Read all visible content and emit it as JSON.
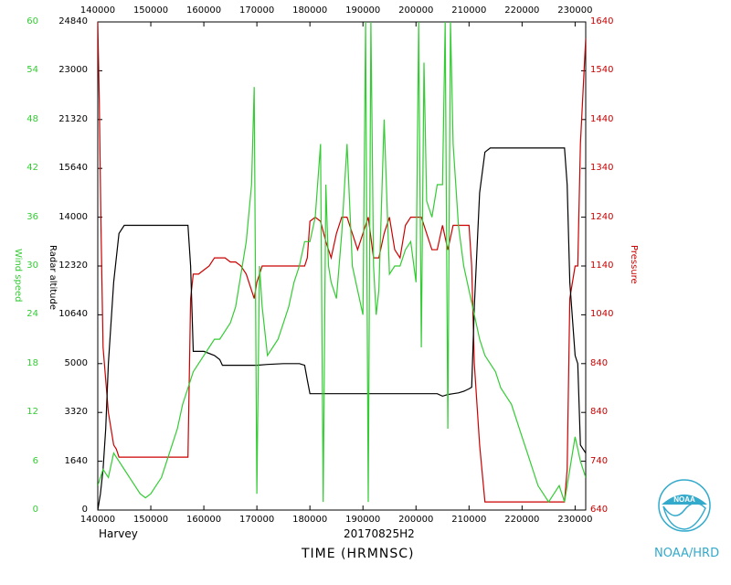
{
  "labels": {
    "storm": "Harvey",
    "flight": "20170825H2",
    "x_title": "TIME (HRMNSC)",
    "credit": "NOAA/HRD",
    "logo_text": "NOAA"
  },
  "colors": {
    "wind": "#33cc33",
    "altitude": "#000000",
    "pressure": "#cc0000",
    "credit": "#33aacc"
  },
  "chart_data": {
    "type": "line",
    "xlabel": "TIME (HRMNSC)",
    "x_ticks": [
      "140000",
      "150000",
      "160000",
      "170000",
      "180000",
      "190000",
      "200000",
      "210000",
      "220000",
      "230000"
    ],
    "x_tick_values": [
      140000,
      150000,
      160000,
      170000,
      180000,
      190000,
      200000,
      210000,
      220000,
      230000
    ],
    "x_range": [
      140000,
      232000
    ],
    "grid": false,
    "axes": [
      {
        "key": "wind",
        "label": "Wind speed",
        "side": "left-outer",
        "ticks": [
          "0",
          "6",
          "12",
          "18",
          "24",
          "30",
          "36",
          "42",
          "48",
          "54",
          "60"
        ],
        "range": [
          0,
          60
        ]
      },
      {
        "key": "alt",
        "label": "Radar altitude",
        "side": "left-inner",
        "ticks": [
          "0",
          "1640",
          "3320",
          "5000",
          "10640",
          "12320",
          "14000",
          "15640",
          "21320",
          "23000",
          "24840"
        ]
      },
      {
        "key": "pres",
        "label": "Pressure",
        "side": "right",
        "ticks": [
          "640",
          "740",
          "840",
          "840",
          "1040",
          "1140",
          "1240",
          "1340",
          "1440",
          "1540",
          "1640"
        ]
      }
    ],
    "series": [
      {
        "key": "wind",
        "x": [
          140000,
          141000,
          142000,
          143000,
          144000,
          145000,
          146000,
          147000,
          148000,
          149000,
          150000,
          151000,
          152000,
          153000,
          154000,
          155000,
          156000,
          157000,
          158000,
          159000,
          160000,
          161000,
          162000,
          163000,
          164000,
          165000,
          166000,
          167000,
          168000,
          169000,
          169500,
          170000,
          170500,
          171000,
          172000,
          173000,
          174000,
          175000,
          176000,
          177000,
          178000,
          179000,
          180000,
          181000,
          182000,
          182500,
          183000,
          183500,
          184000,
          185000,
          186000,
          187000,
          188000,
          189000,
          190000,
          190500,
          191000,
          191500,
          192000,
          192500,
          193000,
          194000,
          195000,
          196000,
          197000,
          198000,
          199000,
          200000,
          200500,
          201000,
          201500,
          202000,
          203000,
          204000,
          205000,
          205500,
          206000,
          206500,
          207000,
          208000,
          209000,
          210000,
          211000,
          212000,
          213000,
          214000,
          215000,
          216000,
          217000,
          218000,
          219000,
          220000,
          221000,
          222000,
          223000,
          224000,
          225000,
          226000,
          227000,
          228000,
          229000,
          230000,
          231000,
          232000
        ],
        "y": [
          3,
          5,
          4,
          7,
          6,
          5,
          4,
          3,
          2,
          1.5,
          2,
          3,
          4,
          6,
          8,
          10,
          13,
          15,
          17,
          18,
          19,
          20,
          21,
          21,
          22,
          23,
          25,
          29,
          33,
          40,
          52,
          2,
          30,
          25,
          19,
          20,
          21,
          23,
          25,
          28,
          30,
          33,
          33,
          36,
          45,
          1,
          40,
          30,
          28,
          26,
          34,
          45,
          30,
          27,
          24,
          60,
          1,
          60,
          30,
          24,
          27,
          48,
          29,
          30,
          30,
          32,
          33,
          28,
          60,
          20,
          55,
          38,
          36,
          40,
          40,
          60,
          10,
          60,
          45,
          35,
          30,
          27,
          24,
          21,
          19,
          18,
          17,
          15,
          14,
          13,
          11,
          9,
          7,
          5,
          3,
          2,
          1,
          2,
          3,
          1,
          5,
          9,
          6,
          4
        ]
      },
      {
        "key": "alt",
        "x": [
          140000,
          140500,
          141000,
          141500,
          142000,
          143000,
          144000,
          145000,
          150000,
          155000,
          157000,
          157500,
          158000,
          159000,
          160000,
          162000,
          163000,
          163500,
          165000,
          170000,
          172000,
          175000,
          178000,
          179000,
          179500,
          180000,
          181000,
          185000,
          190000,
          195000,
          200000,
          204000,
          205000,
          206000,
          207000,
          208000,
          209000,
          210000,
          210500,
          211000,
          212000,
          213000,
          214000,
          220000,
          228000,
          228500,
          229000,
          230000,
          230500,
          231000,
          232000
        ],
        "y": [
          0,
          2,
          5,
          10,
          18,
          28,
          34,
          35,
          35,
          35,
          35,
          30,
          19.5,
          19.5,
          19.5,
          19,
          18.5,
          17.8,
          17.8,
          17.8,
          17.9,
          18,
          18,
          17.8,
          16,
          14.3,
          14.3,
          14.3,
          14.3,
          14.3,
          14.3,
          14.3,
          14,
          14.2,
          14.3,
          14.4,
          14.6,
          14.9,
          15.1,
          25,
          39,
          44,
          44.5,
          44.5,
          44.5,
          40,
          28,
          19,
          18,
          8,
          7
        ]
      },
      {
        "key": "pres",
        "x": [
          140000,
          140300,
          140600,
          141000,
          142000,
          143000,
          143500,
          144000,
          150000,
          155000,
          157000,
          157500,
          158000,
          159000,
          160000,
          161000,
          162000,
          163000,
          164000,
          165000,
          166000,
          167000,
          168000,
          169000,
          169500,
          170000,
          170500,
          171000,
          172000,
          175000,
          178000,
          179000,
          179500,
          180000,
          181000,
          182000,
          183000,
          184000,
          185000,
          186000,
          187000,
          188000,
          189000,
          190000,
          191000,
          192000,
          193000,
          194000,
          195000,
          196000,
          197000,
          198000,
          199000,
          200000,
          201000,
          202000,
          203000,
          204000,
          205000,
          206000,
          207000,
          208000,
          209000,
          210000,
          210500,
          211000,
          212000,
          213000,
          215000,
          220000,
          225000,
          228000,
          228500,
          229000,
          230000,
          230500,
          231000,
          232000
        ],
        "y": [
          60,
          50,
          35,
          20,
          12,
          8,
          7.5,
          6.5,
          6.5,
          6.5,
          6.5,
          26,
          29,
          29,
          29.5,
          30,
          31,
          31,
          31,
          30.5,
          30.5,
          30,
          29,
          27,
          26,
          28,
          29,
          30,
          30,
          30,
          30,
          30,
          31,
          35.5,
          36,
          35.5,
          33,
          31,
          34,
          36,
          36,
          34,
          32,
          34,
          36,
          31,
          31,
          34,
          36,
          32,
          31,
          35,
          36,
          36,
          36,
          34,
          32,
          32,
          35,
          32,
          35,
          35,
          35,
          35,
          30,
          18,
          8,
          1,
          1,
          1,
          1,
          1,
          5,
          26,
          30,
          30,
          45,
          58
        ]
      }
    ]
  }
}
